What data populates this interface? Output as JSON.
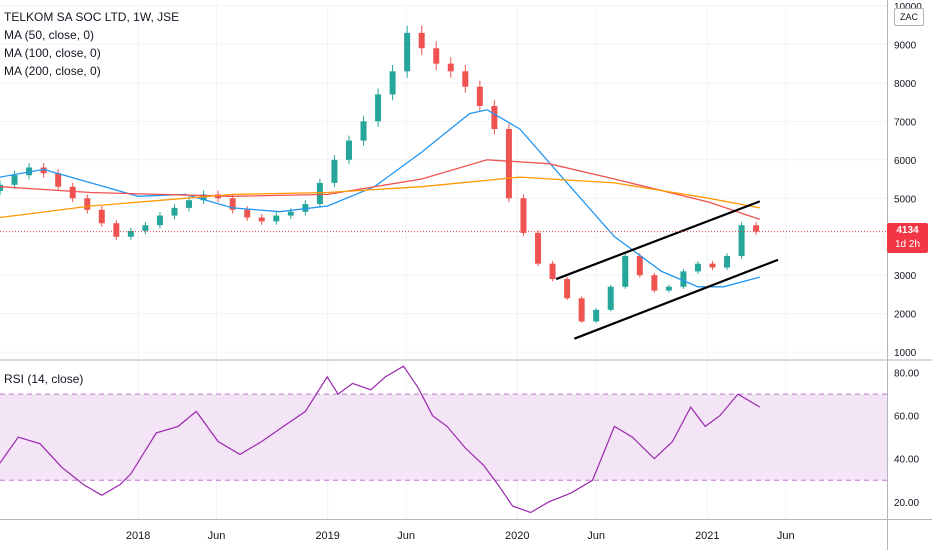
{
  "header": {
    "symbol": "TELKOM SA SOC LTD, 1W, JSE",
    "ma50": "MA (50, close, 0)",
    "ma100": "MA (100, close, 0)",
    "ma200": "MA (200, close, 0)",
    "rsi": "RSI (14, close)",
    "currency": "ZAC"
  },
  "last_price": {
    "value": "4134",
    "countdown": "1d 2h"
  },
  "colors": {
    "up": "#26a69a",
    "down": "#ef5350",
    "ma50": "#2196f3",
    "ma100": "#ef5350",
    "ma200": "#ff9800",
    "rsi": "#9c27b0",
    "rsi_band": "#f3e5f5",
    "trendline": "#000000"
  },
  "chart_data": [
    {
      "type": "line",
      "title": "TELKOM SA SOC LTD, 1W, JSE",
      "y_ticks": [
        1000,
        2000,
        3000,
        4000,
        5000,
        6000,
        7000,
        8000,
        9000,
        10000
      ],
      "ylim": [
        900,
        10050
      ],
      "x_range": [
        "2017-04-10",
        "2021-12-13"
      ],
      "x_ticks": [
        {
          "label": "2018",
          "date": "2018-01-01"
        },
        {
          "label": "Jun",
          "date": "2018-06-01"
        },
        {
          "label": "2019",
          "date": "2019-01-01"
        },
        {
          "label": "Jun",
          "date": "2019-06-01"
        },
        {
          "label": "2020",
          "date": "2020-01-01"
        },
        {
          "label": "Jun",
          "date": "2020-06-01"
        },
        {
          "label": "2021",
          "date": "2021-01-01"
        },
        {
          "label": "Jun",
          "date": "2021-06-01"
        }
      ],
      "last_value": 4134,
      "series": [
        {
          "name": "TELKOM SA SOC LTD (close)",
          "points": [
            [
              "2017-04-10",
              5350
            ],
            [
              "2017-05-08",
              5600
            ],
            [
              "2017-06-05",
              5800
            ],
            [
              "2017-07-03",
              5650
            ],
            [
              "2017-07-31",
              5300
            ],
            [
              "2017-08-28",
              5000
            ],
            [
              "2017-09-25",
              4700
            ],
            [
              "2017-10-23",
              4350
            ],
            [
              "2017-11-20",
              4000
            ],
            [
              "2017-12-18",
              4150
            ],
            [
              "2018-01-15",
              4300
            ],
            [
              "2018-02-12",
              4550
            ],
            [
              "2018-03-12",
              4750
            ],
            [
              "2018-04-09",
              4950
            ],
            [
              "2018-05-07",
              5100
            ],
            [
              "2018-06-04",
              5000
            ],
            [
              "2018-07-02",
              4700
            ],
            [
              "2018-07-30",
              4500
            ],
            [
              "2018-08-27",
              4400
            ],
            [
              "2018-09-24",
              4550
            ],
            [
              "2018-10-22",
              4650
            ],
            [
              "2018-11-19",
              4850
            ],
            [
              "2018-12-17",
              5400
            ],
            [
              "2019-01-14",
              6000
            ],
            [
              "2019-02-11",
              6500
            ],
            [
              "2019-03-11",
              7000
            ],
            [
              "2019-04-08",
              7700
            ],
            [
              "2019-05-06",
              8300
            ],
            [
              "2019-06-03",
              9300
            ],
            [
              "2019-07-01",
              8900
            ],
            [
              "2019-07-29",
              8500
            ],
            [
              "2019-08-26",
              8300
            ],
            [
              "2019-09-23",
              7900
            ],
            [
              "2019-10-21",
              7400
            ],
            [
              "2019-11-18",
              6800
            ],
            [
              "2019-12-16",
              5000
            ],
            [
              "2020-01-13",
              4100
            ],
            [
              "2020-02-10",
              3300
            ],
            [
              "2020-03-09",
              2900
            ],
            [
              "2020-04-06",
              2400
            ],
            [
              "2020-05-04",
              1800
            ],
            [
              "2020-06-01",
              2100
            ],
            [
              "2020-06-29",
              2700
            ],
            [
              "2020-07-27",
              3500
            ],
            [
              "2020-08-24",
              3000
            ],
            [
              "2020-09-21",
              2600
            ],
            [
              "2020-10-19",
              2700
            ],
            [
              "2020-11-16",
              3100
            ],
            [
              "2020-12-14",
              3300
            ],
            [
              "2021-01-11",
              3200
            ],
            [
              "2021-02-08",
              3500
            ],
            [
              "2021-03-08",
              4300
            ],
            [
              "2021-04-05",
              4134
            ]
          ]
        },
        {
          "name": "MA (50, close, 0)",
          "points": [
            [
              "2017-04-10",
              5550
            ],
            [
              "2017-07-03",
              5750
            ],
            [
              "2017-10-02",
              5400
            ],
            [
              "2018-01-01",
              5050
            ],
            [
              "2018-04-02",
              5100
            ],
            [
              "2018-07-02",
              4750
            ],
            [
              "2018-10-01",
              4650
            ],
            [
              "2019-01-01",
              4800
            ],
            [
              "2019-04-01",
              5300
            ],
            [
              "2019-07-01",
              6200
            ],
            [
              "2019-10-01",
              7200
            ],
            [
              "2019-11-04",
              7300
            ],
            [
              "2020-01-06",
              6800
            ],
            [
              "2020-04-06",
              5400
            ],
            [
              "2020-07-06",
              4000
            ],
            [
              "2020-10-05",
              3100
            ],
            [
              "2020-12-14",
              2700
            ],
            [
              "2021-02-01",
              2700
            ],
            [
              "2021-04-12",
              2950
            ]
          ]
        },
        {
          "name": "MA (100, close, 0)",
          "points": [
            [
              "2017-04-10",
              5300
            ],
            [
              "2017-10-02",
              5150
            ],
            [
              "2018-07-02",
              5050
            ],
            [
              "2019-01-01",
              5100
            ],
            [
              "2019-07-01",
              5500
            ],
            [
              "2019-11-04",
              6000
            ],
            [
              "2020-03-02",
              5900
            ],
            [
              "2020-07-06",
              5500
            ],
            [
              "2021-01-04",
              4900
            ],
            [
              "2021-04-12",
              4450
            ]
          ]
        },
        {
          "name": "MA (200, close, 0)",
          "points": [
            [
              "2017-04-10",
              4500
            ],
            [
              "2017-10-02",
              4800
            ],
            [
              "2018-07-02",
              5100
            ],
            [
              "2019-01-01",
              5150
            ],
            [
              "2019-07-01",
              5300
            ],
            [
              "2020-01-06",
              5550
            ],
            [
              "2020-07-06",
              5400
            ],
            [
              "2021-01-04",
              5000
            ],
            [
              "2021-04-12",
              4750
            ]
          ]
        }
      ],
      "trendlines": [
        {
          "start": [
            "2020-03-16",
            2900
          ],
          "end": [
            "2021-04-12",
            4920
          ]
        },
        {
          "start": [
            "2020-04-20",
            1350
          ],
          "end": [
            "2021-05-17",
            3400
          ]
        }
      ]
    },
    {
      "type": "line",
      "title": "RSI (14, close)",
      "y_ticks": [
        20,
        40,
        60,
        80
      ],
      "ylim": [
        12,
        84
      ],
      "bands": [
        30,
        70
      ],
      "series": [
        {
          "name": "RSI (14, close)",
          "points": [
            [
              "2017-04-10",
              38
            ],
            [
              "2017-05-15",
              50
            ],
            [
              "2017-06-26",
              47
            ],
            [
              "2017-08-07",
              36
            ],
            [
              "2017-09-18",
              28
            ],
            [
              "2017-10-23",
              23
            ],
            [
              "2017-11-27",
              28
            ],
            [
              "2017-12-18",
              33
            ],
            [
              "2018-02-05",
              52
            ],
            [
              "2018-03-19",
              55
            ],
            [
              "2018-04-23",
              62
            ],
            [
              "2018-06-04",
              48
            ],
            [
              "2018-07-16",
              42
            ],
            [
              "2018-08-27",
              48
            ],
            [
              "2018-10-08",
              55
            ],
            [
              "2018-11-19",
              62
            ],
            [
              "2018-12-31",
              78
            ],
            [
              "2019-01-21",
              70
            ],
            [
              "2019-02-18",
              75
            ],
            [
              "2019-03-25",
              72
            ],
            [
              "2019-04-22",
              78
            ],
            [
              "2019-05-27",
              83
            ],
            [
              "2019-06-24",
              73
            ],
            [
              "2019-07-22",
              60
            ],
            [
              "2019-08-19",
              55
            ],
            [
              "2019-09-23",
              45
            ],
            [
              "2019-10-28",
              37
            ],
            [
              "2019-11-25",
              28
            ],
            [
              "2019-12-23",
              18
            ],
            [
              "2020-01-27",
              15
            ],
            [
              "2020-03-02",
              20
            ],
            [
              "2020-04-13",
              24
            ],
            [
              "2020-05-25",
              30
            ],
            [
              "2020-07-06",
              55
            ],
            [
              "2020-08-10",
              50
            ],
            [
              "2020-09-21",
              40
            ],
            [
              "2020-10-26",
              48
            ],
            [
              "2020-11-30",
              64
            ],
            [
              "2020-12-28",
              55
            ],
            [
              "2021-01-25",
              60
            ],
            [
              "2021-03-01",
              70
            ],
            [
              "2021-04-12",
              64
            ]
          ]
        }
      ]
    }
  ]
}
